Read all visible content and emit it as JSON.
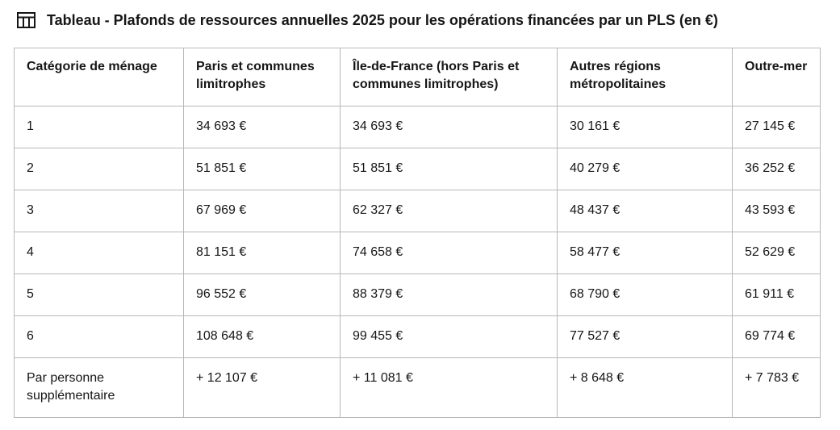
{
  "page": {
    "title": "Tableau - Plafonds de ressources annuelles 2025 pour les opérations financées par un PLS (en €)",
    "title_icon": "table-icon"
  },
  "table": {
    "headers": [
      "Catégorie de ménage",
      "Paris et communes limitrophes",
      "Île-de-France (hors Paris et communes limitrophes)",
      "Autres régions métropolitaines",
      "Outre-mer"
    ],
    "rows": [
      [
        "1",
        "34 693 €",
        "34 693 €",
        "30 161 €",
        "27 145 €"
      ],
      [
        "2",
        "51 851 €",
        "51 851 €",
        "40 279 €",
        "36 252 €"
      ],
      [
        "3",
        "67 969 €",
        "62 327 €",
        "48 437 €",
        "43 593 €"
      ],
      [
        "4",
        "81 151 €",
        "74 658 €",
        "58 477 €",
        "52 629 €"
      ],
      [
        "5",
        "96 552 €",
        "88 379 €",
        "68 790 €",
        "61 911 €"
      ],
      [
        "6",
        "108 648 €",
        "99 455 €",
        "77 527 €",
        "69 774 €"
      ],
      [
        "Par personne supplémentaire",
        "+ 12 107 €",
        "+ 11 081 €",
        "+ 8 648 €",
        "+ 7 783 €"
      ]
    ]
  }
}
